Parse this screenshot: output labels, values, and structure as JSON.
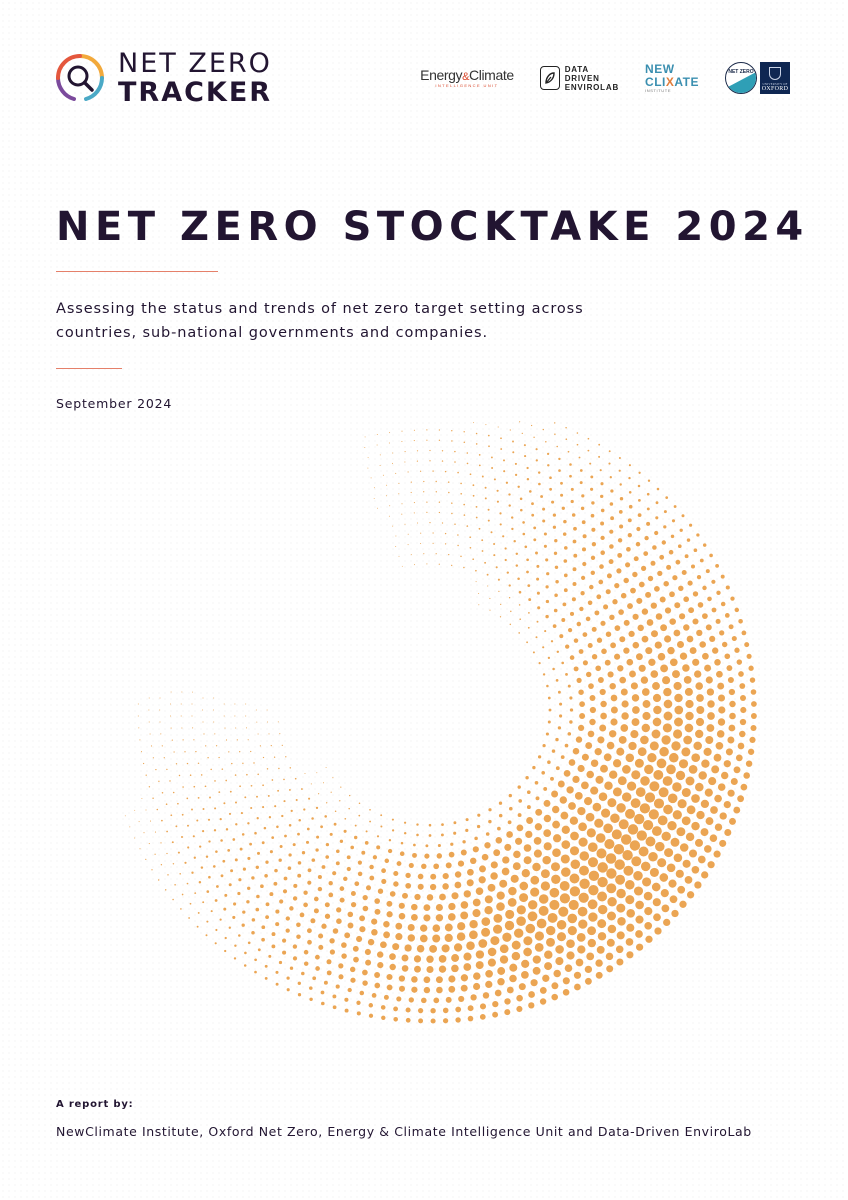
{
  "header": {
    "logo_line1": "NET ZERO",
    "logo_line2": "TRACKER",
    "partners": {
      "eciu_main_left": "Energy",
      "eciu_amp": "&",
      "eciu_main_right": "Climate",
      "eciu_sub": "INTELLIGENCE UNIT",
      "ddel_line1": "DATA",
      "ddel_line2": "DRIVEN",
      "ddel_line3": "ENVIROLAB",
      "newclimate_top": "NEW",
      "newclimate_bot_left": "CLI",
      "newclimate_bot_x": "X",
      "newclimate_bot_right": "ATE",
      "newclimate_sub": "INSTITUTE",
      "onz_badge": "NET ZERO",
      "oxford_small": "UNIVERSITY OF",
      "oxford_name": "OXFORD"
    }
  },
  "title": "NET ZERO STOCKTAKE 2024",
  "subtitle": "Assessing the status and trends of net zero target setting across countries, sub-national governments and companies.",
  "date": "September 2024",
  "footer": {
    "byline_label": "A report by:",
    "authors": "NewClimate Institute, Oxford Net Zero, Energy & Climate Intelligence Unit and Data-Driven EnviroLab"
  },
  "colors": {
    "ink": "#221531",
    "accent_rule": "#e5806a",
    "dots": "#eba553",
    "logo_ring": [
      "#e4573d",
      "#f2a93b",
      "#4aa9c6",
      "#7b4a9c"
    ]
  },
  "icons": {
    "logo_mark": "magnifier-ring-icon",
    "ddel_mark": "leaf-icon"
  }
}
